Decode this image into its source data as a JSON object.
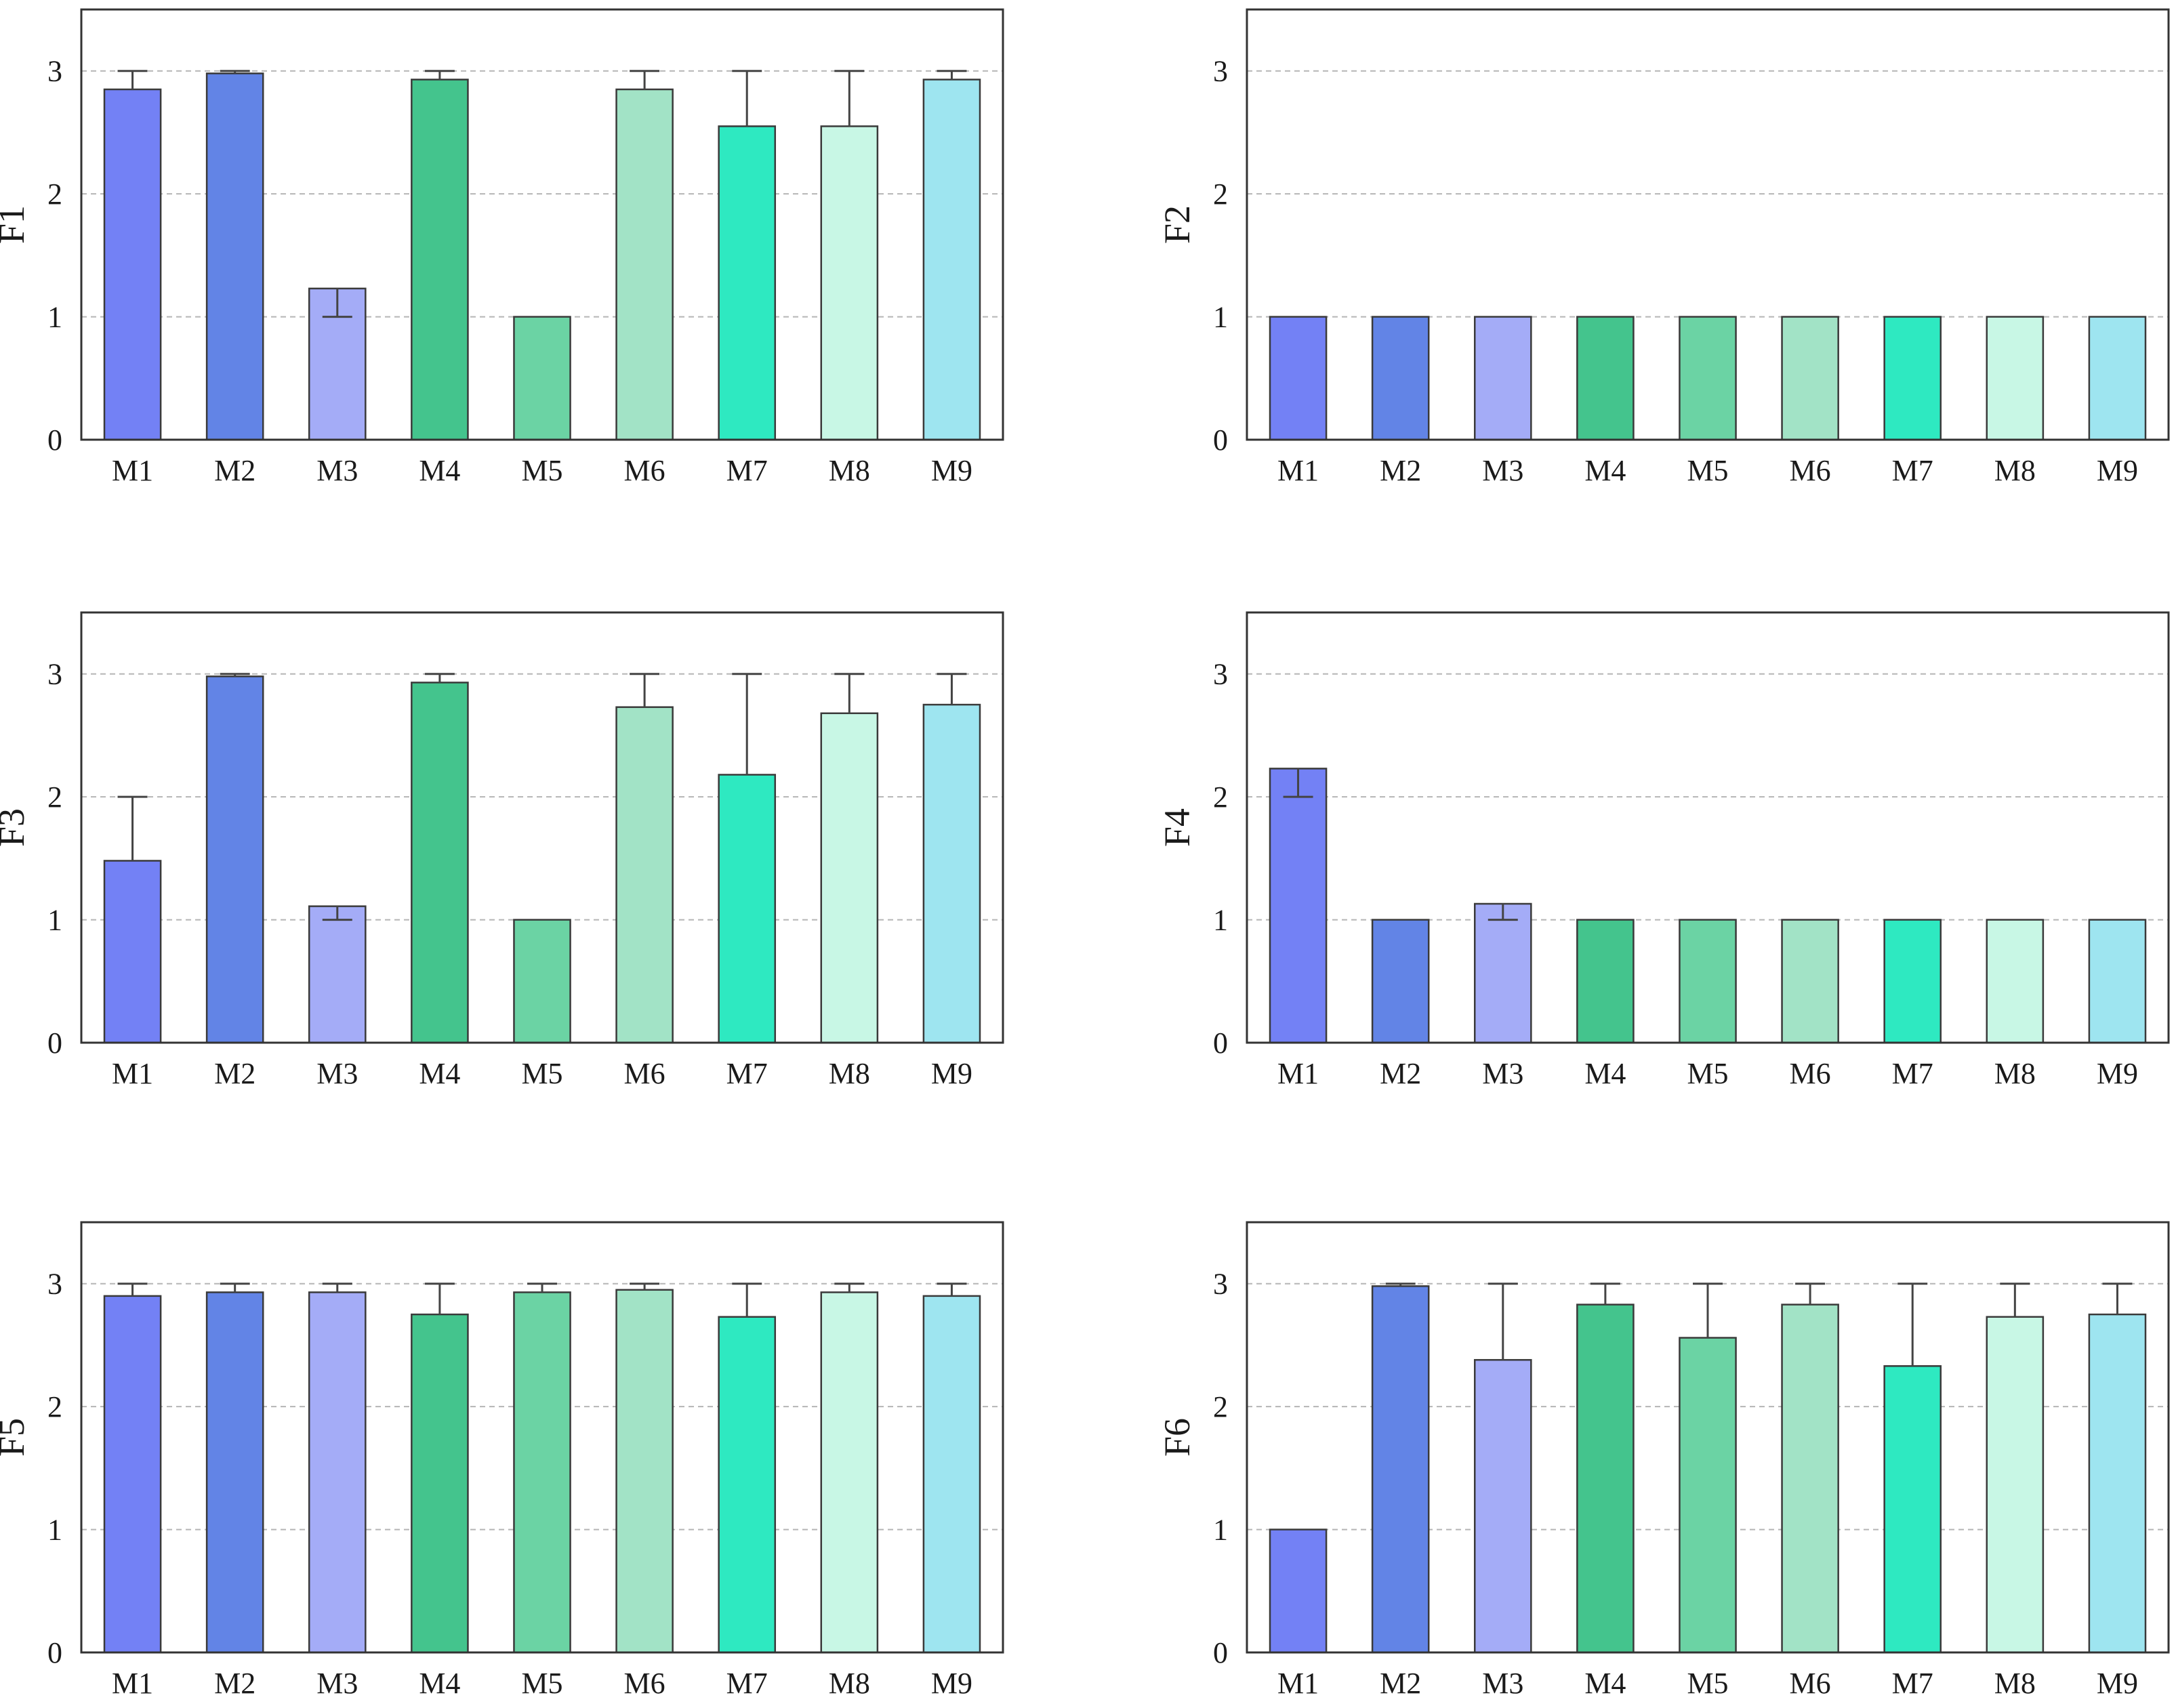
{
  "colors": {
    "M1": "#7381f5",
    "M2": "#6284e6",
    "M3": "#a4acf7",
    "M4": "#44c48d",
    "M5": "#6bd3a4",
    "M6": "#a2e3c6",
    "M7": "#2ee9c1",
    "M8": "#c8f7e5",
    "M9": "#9ee5f0",
    "axis": "#333333",
    "grid": "#b5b5b5",
    "errorbar": "#444444"
  },
  "chart_data": [
    {
      "type": "bar",
      "ylabel": "F1",
      "categories": [
        "M1",
        "M2",
        "M3",
        "M4",
        "M5",
        "M6",
        "M7",
        "M8",
        "M9"
      ],
      "values": [
        2.85,
        2.98,
        1.23,
        2.93,
        1.0,
        2.85,
        2.55,
        2.55,
        2.93
      ],
      "errors": [
        [
          2.85,
          3.0
        ],
        [
          2.98,
          3.0
        ],
        [
          1.0,
          1.23
        ],
        [
          2.93,
          3.0
        ],
        null,
        [
          2.85,
          3.0
        ],
        [
          2.55,
          3.0
        ],
        [
          2.55,
          3.0
        ],
        [
          2.93,
          3.0
        ]
      ],
      "ylim": [
        0,
        3.5
      ],
      "yticks": [
        "0",
        "1",
        "2",
        "3"
      ],
      "grid": true
    },
    {
      "type": "bar",
      "ylabel": "F2",
      "categories": [
        "M1",
        "M2",
        "M3",
        "M4",
        "M5",
        "M6",
        "M7",
        "M8",
        "M9"
      ],
      "values": [
        1.0,
        1.0,
        1.0,
        1.0,
        1.0,
        1.0,
        1.0,
        1.0,
        1.0
      ],
      "errors": [
        null,
        null,
        null,
        null,
        null,
        null,
        null,
        null,
        null
      ],
      "ylim": [
        0,
        3.5
      ],
      "yticks": [
        "0",
        "1",
        "2",
        "3"
      ],
      "grid": true
    },
    {
      "type": "bar",
      "ylabel": "F3",
      "categories": [
        "M1",
        "M2",
        "M3",
        "M4",
        "M5",
        "M6",
        "M7",
        "M8",
        "M9"
      ],
      "values": [
        1.48,
        2.98,
        1.11,
        2.93,
        1.0,
        2.73,
        2.18,
        2.68,
        2.75
      ],
      "errors": [
        [
          1.48,
          2.0
        ],
        [
          2.98,
          3.0
        ],
        [
          1.0,
          1.11
        ],
        [
          2.93,
          3.0
        ],
        null,
        [
          2.73,
          3.0
        ],
        [
          2.18,
          3.0
        ],
        [
          2.68,
          3.0
        ],
        [
          2.75,
          3.0
        ]
      ],
      "ylim": [
        0,
        3.5
      ],
      "yticks": [
        "0",
        "1",
        "2",
        "3"
      ],
      "grid": true
    },
    {
      "type": "bar",
      "ylabel": "F4",
      "categories": [
        "M1",
        "M2",
        "M3",
        "M4",
        "M5",
        "M6",
        "M7",
        "M8",
        "M9"
      ],
      "values": [
        2.23,
        1.0,
        1.13,
        1.0,
        1.0,
        1.0,
        1.0,
        1.0,
        1.0
      ],
      "errors": [
        [
          2.0,
          2.23
        ],
        null,
        [
          1.0,
          1.13
        ],
        null,
        null,
        null,
        null,
        null,
        null
      ],
      "ylim": [
        0,
        3.5
      ],
      "yticks": [
        "0",
        "1",
        "2",
        "3"
      ],
      "grid": true
    },
    {
      "type": "bar",
      "ylabel": "F5",
      "categories": [
        "M1",
        "M2",
        "M3",
        "M4",
        "M5",
        "M6",
        "M7",
        "M8",
        "M9"
      ],
      "values": [
        2.9,
        2.93,
        2.93,
        2.75,
        2.93,
        2.95,
        2.73,
        2.93,
        2.9
      ],
      "errors": [
        [
          2.9,
          3.0
        ],
        [
          2.93,
          3.0
        ],
        [
          2.93,
          3.0
        ],
        [
          2.75,
          3.0
        ],
        [
          2.93,
          3.0
        ],
        [
          2.95,
          3.0
        ],
        [
          2.73,
          3.0
        ],
        [
          2.93,
          3.0
        ],
        [
          2.9,
          3.0
        ]
      ],
      "ylim": [
        0,
        3.5
      ],
      "yticks": [
        "0",
        "1",
        "2",
        "3"
      ],
      "grid": true
    },
    {
      "type": "bar",
      "ylabel": "F6",
      "categories": [
        "M1",
        "M2",
        "M3",
        "M4",
        "M5",
        "M6",
        "M7",
        "M8",
        "M9"
      ],
      "values": [
        1.0,
        2.98,
        2.38,
        2.83,
        2.56,
        2.83,
        2.33,
        2.73,
        2.75
      ],
      "errors": [
        null,
        [
          2.98,
          3.0
        ],
        [
          2.38,
          3.0
        ],
        [
          2.83,
          3.0
        ],
        [
          2.56,
          3.0
        ],
        [
          2.83,
          3.0
        ],
        [
          2.33,
          3.0
        ],
        [
          2.73,
          3.0
        ],
        [
          2.75,
          3.0
        ]
      ],
      "ylim": [
        0,
        3.5
      ],
      "yticks": [
        "0",
        "1",
        "2",
        "3"
      ],
      "grid": true
    }
  ]
}
